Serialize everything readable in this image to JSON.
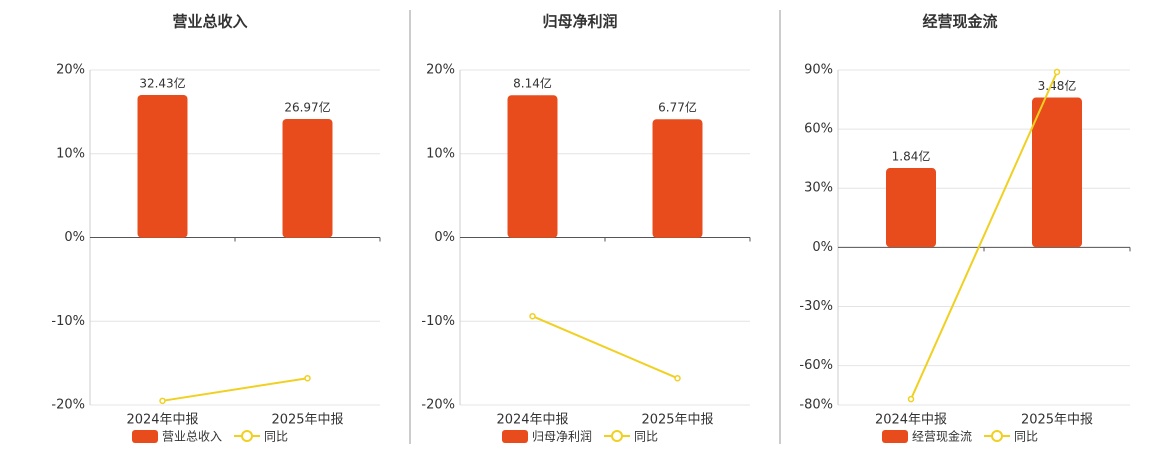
{
  "chart_data": [
    {
      "type": "bar",
      "title": "营业总收入",
      "categories": [
        "2024年中报",
        "2025年中报"
      ],
      "ylim": [
        -20,
        20
      ],
      "yticks": [
        {
          "value": -20,
          "label": "-20%"
        },
        {
          "value": -10,
          "label": "-10%"
        },
        {
          "value": 0,
          "label": "0%"
        },
        {
          "value": 10,
          "label": "10%"
        },
        {
          "value": 20,
          "label": "20%"
        }
      ],
      "y2lim": [
        -38,
        38.1
      ],
      "grid": true,
      "series": [
        {
          "name": "营业总收入",
          "type": "bar",
          "axis": "y2",
          "color": "#e84c1c",
          "values": [
            32.43,
            26.97
          ],
          "value_labels": [
            "32.43亿",
            "26.97亿"
          ]
        },
        {
          "name": "同比",
          "type": "line",
          "color": "#f0d020",
          "values": [
            -19.5,
            -16.8
          ]
        }
      ]
    },
    {
      "type": "bar",
      "title": "归母净利润",
      "categories": [
        "2024年中报",
        "2025年中报"
      ],
      "ylim": [
        -20,
        20
      ],
      "yticks": [
        {
          "value": -20,
          "label": "-20%"
        },
        {
          "value": -10,
          "label": "-10%"
        },
        {
          "value": 0,
          "label": "0%"
        },
        {
          "value": 10,
          "label": "10%"
        },
        {
          "value": 20,
          "label": "20%"
        }
      ],
      "y2lim": [
        -9.55,
        9.58
      ],
      "grid": true,
      "series": [
        {
          "name": "归母净利润",
          "type": "bar",
          "axis": "y2",
          "color": "#e84c1c",
          "values": [
            8.14,
            6.77
          ],
          "value_labels": [
            "8.14亿",
            "6.77亿"
          ]
        },
        {
          "name": "同比",
          "type": "line",
          "color": "#f0d020",
          "values": [
            -9.4,
            -16.8
          ]
        }
      ]
    },
    {
      "type": "bar",
      "title": "经营现金流",
      "categories": [
        "2024年中报",
        "2025年中报"
      ],
      "ylim": [
        -80,
        90
      ],
      "yticks": [
        {
          "value": -80,
          "label": "-80%"
        },
        {
          "value": -60,
          "label": "-60%"
        },
        {
          "value": -30,
          "label": "-30%"
        },
        {
          "value": 0,
          "label": "0%"
        },
        {
          "value": 30,
          "label": "30%"
        },
        {
          "value": 60,
          "label": "60%"
        },
        {
          "value": 90,
          "label": "90%"
        }
      ],
      "y2lim": [
        -3.67,
        4.12
      ],
      "grid": true,
      "series": [
        {
          "name": "经营现金流",
          "type": "bar",
          "axis": "y2",
          "color": "#e84c1c",
          "values": [
            1.84,
            3.48
          ],
          "value_labels": [
            "1.84亿",
            "3.48亿"
          ]
        },
        {
          "name": "同比",
          "type": "line",
          "color": "#f0d020",
          "values": [
            -77,
            89
          ]
        }
      ]
    }
  ]
}
